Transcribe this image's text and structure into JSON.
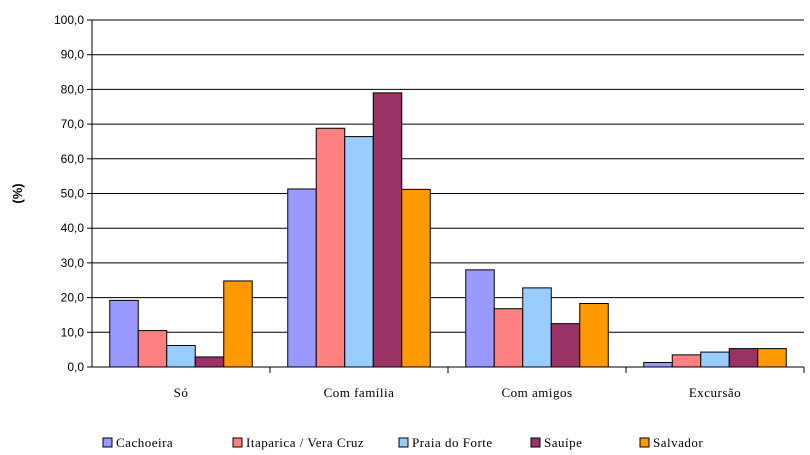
{
  "chart_data": {
    "type": "bar",
    "title": "",
    "xlabel": "",
    "ylabel": "(%)",
    "ylim": [
      0,
      100
    ],
    "yticks": [
      "0,0",
      "10,0",
      "20,0",
      "30,0",
      "40,0",
      "50,0",
      "60,0",
      "70,0",
      "80,0",
      "90,0",
      "100,0"
    ],
    "grid": true,
    "legend_position": "bottom",
    "categories": [
      "Só",
      "Com família",
      "Com amigos",
      "Excursão"
    ],
    "series": [
      {
        "name": "Cachoeira",
        "color": "#9999ff",
        "values": [
          19.2,
          51.3,
          28.0,
          1.3
        ]
      },
      {
        "name": "Itaparica / Vera Cruz",
        "color": "#ff8080",
        "values": [
          10.5,
          68.8,
          16.8,
          3.5
        ]
      },
      {
        "name": "Praia do Forte",
        "color": "#99ccff",
        "values": [
          6.2,
          66.4,
          22.8,
          4.3
        ]
      },
      {
        "name": "Sauípe",
        "color": "#993366",
        "values": [
          2.9,
          79.0,
          12.5,
          5.3
        ]
      },
      {
        "name": "Salvador",
        "color": "#ff9900",
        "values": [
          24.8,
          51.2,
          18.3,
          5.3
        ]
      }
    ]
  }
}
